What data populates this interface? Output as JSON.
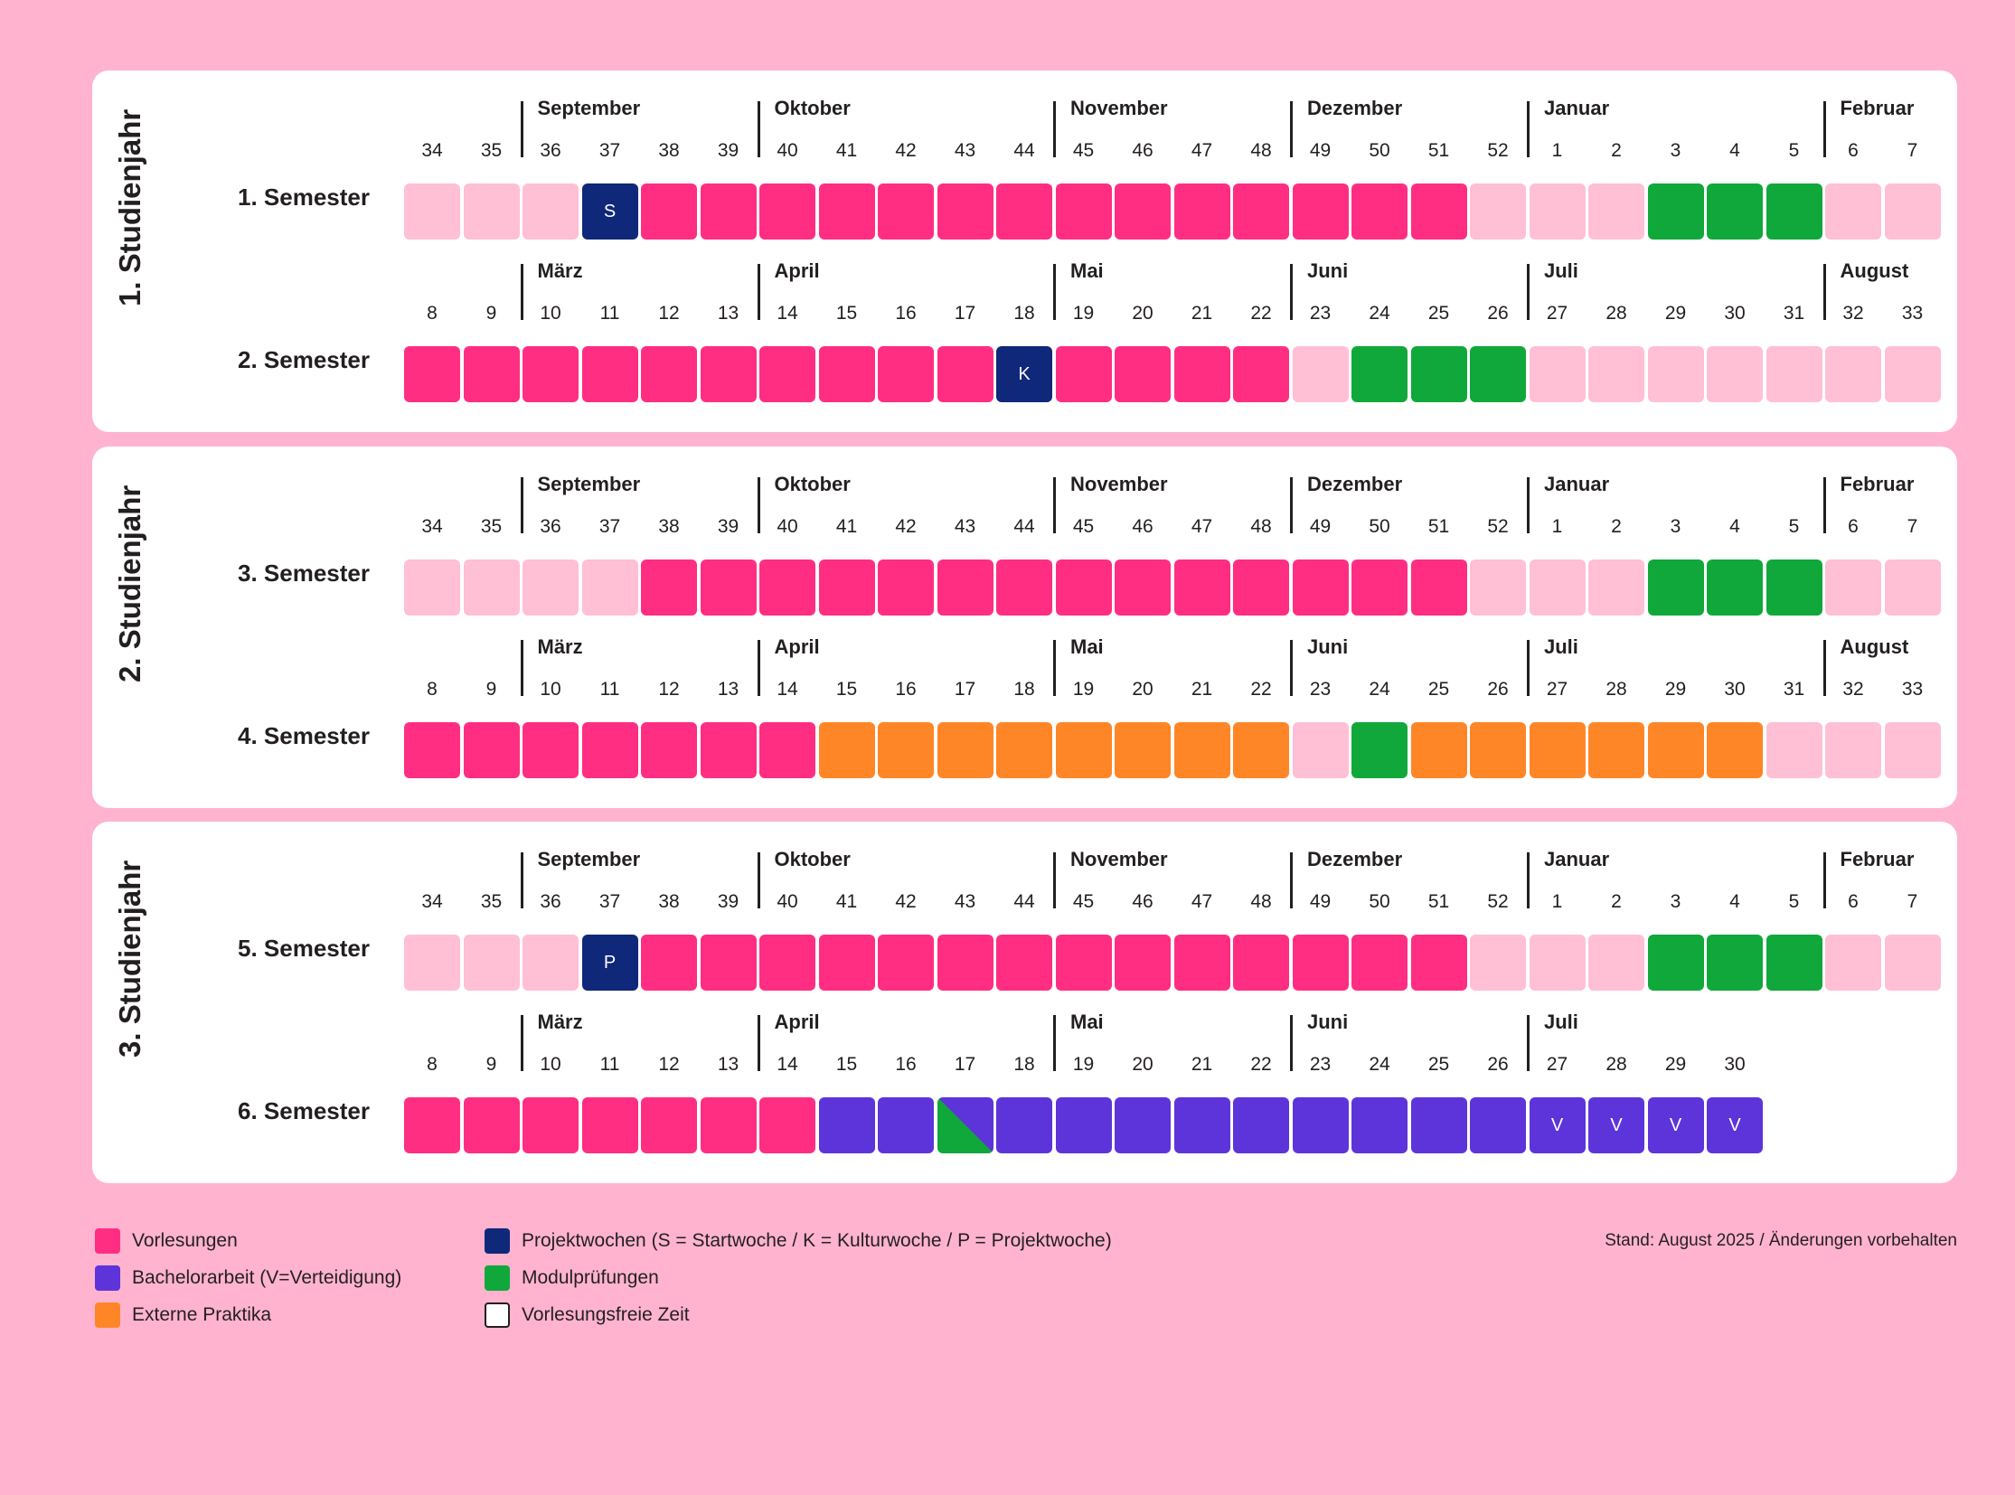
{
  "colors": {
    "V": "#ff2e82",
    "B": "#5d34d9",
    "E": "#ff8627",
    "P": "#10287a",
    "M": "#10a83a",
    "F": "#ffbfd5"
  },
  "chart_data": {
    "type": "table",
    "weeks_winter": [
      "34",
      "35",
      "36",
      "37",
      "38",
      "39",
      "40",
      "41",
      "42",
      "43",
      "44",
      "45",
      "46",
      "47",
      "48",
      "49",
      "50",
      "51",
      "52",
      "1",
      "2",
      "3",
      "4",
      "5",
      "6",
      "7"
    ],
    "weeks_summer": [
      "8",
      "9",
      "10",
      "11",
      "12",
      "13",
      "14",
      "15",
      "16",
      "17",
      "18",
      "19",
      "20",
      "21",
      "22",
      "23",
      "24",
      "25",
      "26",
      "27",
      "28",
      "29",
      "30",
      "31",
      "32",
      "33"
    ],
    "months_winter": [
      {
        "name": "September",
        "start_week": "36"
      },
      {
        "name": "Oktober",
        "start_week": "40"
      },
      {
        "name": "November",
        "start_week": "45"
      },
      {
        "name": "Dezember",
        "start_week": "49"
      },
      {
        "name": "Januar",
        "start_week": "1"
      },
      {
        "name": "Februar",
        "start_week": "6"
      }
    ],
    "months_summer": [
      {
        "name": "März",
        "start_week": "10"
      },
      {
        "name": "April",
        "start_week": "14"
      },
      {
        "name": "Mai",
        "start_week": "19"
      },
      {
        "name": "Juni",
        "start_week": "23"
      },
      {
        "name": "Juli",
        "start_week": "27"
      },
      {
        "name": "August",
        "start_week": "32"
      }
    ],
    "years": [
      {
        "label": "1. Studienjahr",
        "semesters": [
          {
            "label": "1. Semester",
            "period": "winter",
            "cells": [
              "F",
              "F",
              "F",
              "P",
              "V",
              "V",
              "V",
              "V",
              "V",
              "V",
              "V",
              "V",
              "V",
              "V",
              "V",
              "V",
              "V",
              "V",
              "F",
              "F",
              "F",
              "M",
              "M",
              "M",
              "F",
              "F"
            ],
            "marks": {
              "3": "S"
            }
          },
          {
            "label": "2. Semester",
            "period": "summer",
            "cells": [
              "V",
              "V",
              "V",
              "V",
              "V",
              "V",
              "V",
              "V",
              "V",
              "V",
              "P",
              "V",
              "V",
              "V",
              "V",
              "F",
              "M",
              "M",
              "M",
              "F",
              "F",
              "F",
              "F",
              "F",
              "F",
              "F"
            ],
            "marks": {
              "10": "K"
            }
          }
        ]
      },
      {
        "label": "2. Studienjahr",
        "semesters": [
          {
            "label": "3. Semester",
            "period": "winter",
            "cells": [
              "F",
              "F",
              "F",
              "F",
              "V",
              "V",
              "V",
              "V",
              "V",
              "V",
              "V",
              "V",
              "V",
              "V",
              "V",
              "V",
              "V",
              "V",
              "F",
              "F",
              "F",
              "M",
              "M",
              "M",
              "F",
              "F"
            ],
            "marks": {}
          },
          {
            "label": "4. Semester",
            "period": "summer",
            "cells": [
              "V",
              "V",
              "V",
              "V",
              "V",
              "V",
              "V",
              "E",
              "E",
              "E",
              "E",
              "E",
              "E",
              "E",
              "E",
              "F",
              "M",
              "E",
              "E",
              "E",
              "E",
              "E",
              "E",
              "F",
              "F",
              "F"
            ],
            "marks": {}
          }
        ]
      },
      {
        "label": "3. Studienjahr",
        "semesters": [
          {
            "label": "5. Semester",
            "period": "winter",
            "cells": [
              "F",
              "F",
              "F",
              "P",
              "V",
              "V",
              "V",
              "V",
              "V",
              "V",
              "V",
              "V",
              "V",
              "V",
              "V",
              "V",
              "V",
              "V",
              "F",
              "F",
              "F",
              "M",
              "M",
              "M",
              "F",
              "F"
            ],
            "marks": {
              "3": "P"
            }
          },
          {
            "label": "6. Semester",
            "period": "summer",
            "cells": [
              "V",
              "V",
              "V",
              "V",
              "V",
              "V",
              "V",
              "B",
              "B",
              "M/B",
              "B",
              "B",
              "B",
              "B",
              "B",
              "B",
              "B",
              "B",
              "B",
              "B",
              "B",
              "B",
              "B",
              null,
              null,
              null
            ],
            "marks": {
              "19": "V",
              "20": "V",
              "21": "V",
              "22": "V"
            },
            "week_count": 23
          }
        ]
      }
    ]
  },
  "legend": [
    {
      "key": "V",
      "label": "Vorlesungen"
    },
    {
      "key": "B",
      "label": "Bachelorarbeit (V=Verteidigung)"
    },
    {
      "key": "E",
      "label": "Externe Praktika"
    },
    {
      "key": "P",
      "label": "Projektwochen (S = Startwoche / K = Kulturwoche / P = Projektwoche)"
    },
    {
      "key": "M",
      "label": "Modulprüfungen"
    },
    {
      "key": "F",
      "label": "Vorlesungsfreie Zeit"
    }
  ],
  "stand": "Stand: August 2025 / Änderungen vorbehalten"
}
